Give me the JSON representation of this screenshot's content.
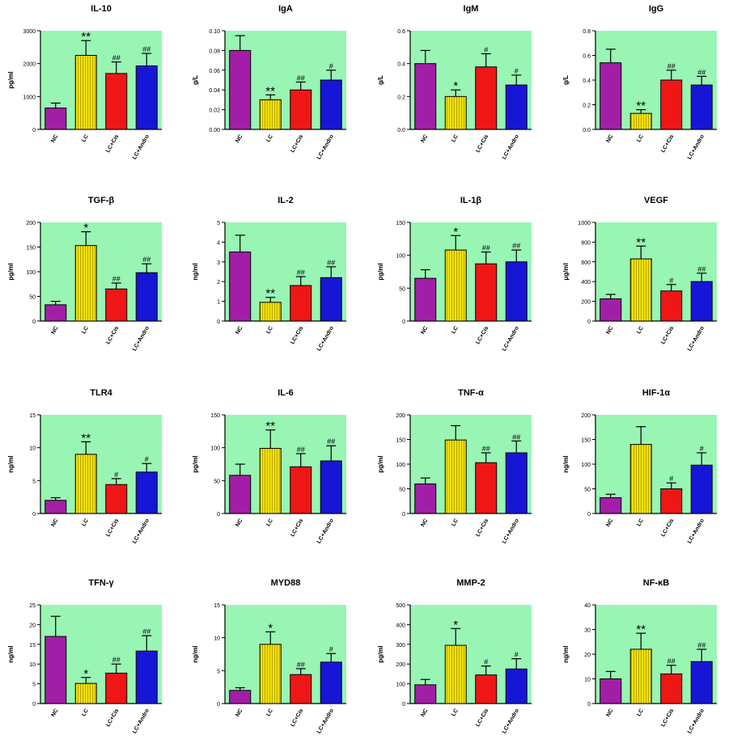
{
  "colors": {
    "background": "#99f5b4",
    "axis": "#000000",
    "groups": [
      "#a21ea6",
      "#f2e20c",
      "#ef1616",
      "#1616d6"
    ],
    "stripe": "#b8a600"
  },
  "chart_data": [
    {
      "type": "bar",
      "title": "IL-10",
      "ylabel": "pg/ml",
      "categories": [
        "NC",
        "LC",
        "LC+Cis",
        "LC+Andro"
      ],
      "values": [
        650,
        2250,
        1700,
        1930
      ],
      "errors": [
        150,
        450,
        350,
        380
      ],
      "annotations": [
        "",
        "**",
        "##",
        "##"
      ],
      "ylim": [
        0,
        3000
      ],
      "yticks": [
        "0",
        "1000",
        "2000",
        "3000"
      ]
    },
    {
      "type": "bar",
      "title": "IgA",
      "ylabel": "g/L",
      "categories": [
        "NC",
        "LC",
        "LC+Cis",
        "LC+Andro"
      ],
      "values": [
        0.08,
        0.03,
        0.04,
        0.05
      ],
      "errors": [
        0.015,
        0.005,
        0.008,
        0.01
      ],
      "annotations": [
        "",
        "**",
        "##",
        "#"
      ],
      "ylim": [
        0,
        0.1
      ],
      "yticks": [
        "0.00",
        "0.02",
        "0.04",
        "0.06",
        "0.08",
        "0.10"
      ]
    },
    {
      "type": "bar",
      "title": "IgM",
      "ylabel": "g/L",
      "categories": [
        "NC",
        "LC",
        "LC+Cis",
        "LC+Andro"
      ],
      "values": [
        0.4,
        0.2,
        0.38,
        0.27
      ],
      "errors": [
        0.08,
        0.04,
        0.08,
        0.06
      ],
      "annotations": [
        "",
        "*",
        "#",
        "#"
      ],
      "ylim": [
        0,
        0.6
      ],
      "yticks": [
        "0.0",
        "0.2",
        "0.4",
        "0.6"
      ]
    },
    {
      "type": "bar",
      "title": "IgG",
      "ylabel": "g/L",
      "categories": [
        "NC",
        "LC",
        "LC+Cis",
        "LC+Andro"
      ],
      "values": [
        0.54,
        0.13,
        0.4,
        0.36
      ],
      "errors": [
        0.11,
        0.03,
        0.08,
        0.07
      ],
      "annotations": [
        "",
        "**",
        "##",
        "##"
      ],
      "ylim": [
        0,
        0.8
      ],
      "yticks": [
        "0.0",
        "0.2",
        "0.4",
        "0.6",
        "0.8"
      ]
    },
    {
      "type": "bar",
      "title": "TGF-β",
      "ylabel": "pg/ml",
      "categories": [
        "NC",
        "LC",
        "LC+Cis",
        "LC+Andro"
      ],
      "values": [
        33,
        153,
        65,
        98
      ],
      "errors": [
        7,
        28,
        12,
        18
      ],
      "annotations": [
        "",
        "*",
        "##",
        "##"
      ],
      "ylim": [
        0,
        200
      ],
      "yticks": [
        "0",
        "50",
        "100",
        "150",
        "200"
      ]
    },
    {
      "type": "bar",
      "title": "IL-2",
      "ylabel": "ng/ml",
      "categories": [
        "NC",
        "LC",
        "LC+Cis",
        "LC+Andro"
      ],
      "values": [
        3.5,
        0.95,
        1.8,
        2.2
      ],
      "errors": [
        0.85,
        0.25,
        0.45,
        0.55
      ],
      "annotations": [
        "",
        "**",
        "##",
        "##"
      ],
      "ylim": [
        0,
        5
      ],
      "yticks": [
        "0",
        "1",
        "2",
        "3",
        "4",
        "5"
      ]
    },
    {
      "type": "bar",
      "title": "IL-1β",
      "ylabel": "pg/ml",
      "categories": [
        "NC",
        "LC",
        "LC+Cis",
        "LC+Andro"
      ],
      "values": [
        65,
        108,
        87,
        90
      ],
      "errors": [
        13,
        22,
        18,
        18
      ],
      "annotations": [
        "",
        "*",
        "##",
        "##"
      ],
      "ylim": [
        0,
        150
      ],
      "yticks": [
        "0",
        "50",
        "100",
        "150"
      ]
    },
    {
      "type": "bar",
      "title": "VEGF",
      "ylabel": "μg/ml",
      "categories": [
        "NC",
        "LC",
        "LC+Cis",
        "LC+Andro"
      ],
      "values": [
        225,
        630,
        305,
        400
      ],
      "errors": [
        45,
        130,
        65,
        85
      ],
      "annotations": [
        "",
        "**",
        "#",
        "##"
      ],
      "ylim": [
        0,
        1000
      ],
      "yticks": [
        "0",
        "200",
        "400",
        "600",
        "800",
        "1000"
      ]
    },
    {
      "type": "bar",
      "title": "TLR4",
      "ylabel": "ng/ml",
      "categories": [
        "NC",
        "LC",
        "LC+Cis",
        "LC+Andro"
      ],
      "values": [
        2.0,
        9.0,
        4.4,
        6.3
      ],
      "errors": [
        0.4,
        1.9,
        0.9,
        1.3
      ],
      "annotations": [
        "",
        "**",
        "#",
        "#"
      ],
      "ylim": [
        0,
        15
      ],
      "yticks": [
        "0",
        "5",
        "10",
        "15"
      ]
    },
    {
      "type": "bar",
      "title": "IL-6",
      "ylabel": "pg/ml",
      "categories": [
        "NC",
        "LC",
        "LC+Cis",
        "LC+Andro"
      ],
      "values": [
        58,
        99,
        71,
        80
      ],
      "errors": [
        17,
        28,
        20,
        23
      ],
      "annotations": [
        "",
        "**",
        "##",
        "##"
      ],
      "ylim": [
        0,
        150
      ],
      "yticks": [
        "0",
        "50",
        "100",
        "150"
      ]
    },
    {
      "type": "bar",
      "title": "TNF-α",
      "ylabel": "pg/ml",
      "categories": [
        "NC",
        "LC",
        "LC+Cis",
        "LC+Andro"
      ],
      "values": [
        60,
        149,
        103,
        123
      ],
      "errors": [
        12,
        29,
        20,
        24
      ],
      "annotations": [
        "",
        "",
        "##",
        "##"
      ],
      "ylim": [
        0,
        200
      ],
      "yticks": [
        "0",
        "50",
        "100",
        "150",
        "200"
      ]
    },
    {
      "type": "bar",
      "title": "HIF-1α",
      "ylabel": "ng/ml",
      "categories": [
        "NC",
        "LC",
        "LC+Cis",
        "LC+Andro"
      ],
      "values": [
        32,
        140,
        50,
        98
      ],
      "errors": [
        7,
        36,
        12,
        25
      ],
      "annotations": [
        "",
        "",
        "#",
        "#"
      ],
      "ylim": [
        0,
        200
      ],
      "yticks": [
        "0",
        "50",
        "100",
        "150",
        "200"
      ]
    },
    {
      "type": "bar",
      "title": "TFN-γ",
      "ylabel": "ng/ml",
      "categories": [
        "NC",
        "LC",
        "LC+Cis",
        "LC+Andro"
      ],
      "values": [
        17,
        5.1,
        7.7,
        13.3
      ],
      "errors": [
        5.1,
        1.5,
        2.3,
        3.9
      ],
      "annotations": [
        "",
        "*",
        "##",
        "##"
      ],
      "ylim": [
        0,
        25
      ],
      "yticks": [
        "0",
        "5",
        "10",
        "15",
        "20",
        "25"
      ]
    },
    {
      "type": "bar",
      "title": "MYD88",
      "ylabel": "ng/ml",
      "categories": [
        "NC",
        "LC",
        "LC+Cis",
        "LC+Andro"
      ],
      "values": [
        2.0,
        9.0,
        4.4,
        6.3
      ],
      "errors": [
        0.4,
        1.9,
        0.9,
        1.3
      ],
      "annotations": [
        "",
        "*",
        "##",
        "#"
      ],
      "ylim": [
        0,
        15
      ],
      "yticks": [
        "0",
        "5",
        "10",
        "15"
      ]
    },
    {
      "type": "bar",
      "title": "MMP-2",
      "ylabel": "pg/ml",
      "categories": [
        "NC",
        "LC",
        "LC+Cis",
        "LC+Andro"
      ],
      "values": [
        95,
        295,
        145,
        175
      ],
      "errors": [
        27,
        85,
        45,
        52
      ],
      "annotations": [
        "",
        "*",
        "#",
        "#"
      ],
      "ylim": [
        0,
        500
      ],
      "yticks": [
        "0",
        "100",
        "200",
        "300",
        "400",
        "500"
      ]
    },
    {
      "type": "bar",
      "title": "NF-κB",
      "ylabel": "ng/ml",
      "categories": [
        "NC",
        "LC",
        "LC+Cis",
        "LC+Andro"
      ],
      "values": [
        10,
        22,
        12,
        17
      ],
      "errors": [
        3,
        6.5,
        3.5,
        5
      ],
      "annotations": [
        "",
        "**",
        "##",
        "##"
      ],
      "ylim": [
        0,
        40
      ],
      "yticks": [
        "0",
        "10",
        "20",
        "30",
        "40"
      ]
    }
  ]
}
